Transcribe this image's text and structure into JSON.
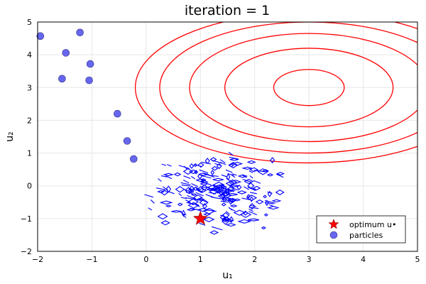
{
  "chart_data": {
    "type": "scatter",
    "title": "iteration = 1",
    "xlabel": "u₁",
    "ylabel": "u₂",
    "xlim": [
      -2,
      5
    ],
    "ylim": [
      -2,
      5
    ],
    "xticks": [
      -2,
      -1,
      0,
      1,
      2,
      3,
      4,
      5
    ],
    "yticks": [
      -2,
      -1,
      0,
      1,
      2,
      3,
      4,
      5
    ],
    "grid": true,
    "legend_position": "bottom-right",
    "colors": {
      "contour": "#ff0000",
      "particles": "#6666ee",
      "particle_edge": "#3a3a88",
      "optimum": "#ff0000",
      "noise_contour": "#0000ff"
    },
    "target_contours": {
      "center": [
        3,
        3
      ],
      "radii_x": [
        0.65,
        1.55,
        2.2,
        2.75,
        3.2
      ],
      "radii_y": [
        0.55,
        1.2,
        1.65,
        2.0,
        2.3
      ]
    },
    "noise_cloud": {
      "center": [
        1.3,
        -0.2
      ],
      "spread_x": 0.55,
      "spread_y": 0.5
    },
    "series": [
      {
        "name": "particles",
        "x": [
          -1.95,
          -1.22,
          -1.48,
          -1.03,
          -1.55,
          -1.05,
          -0.53,
          -0.35,
          -0.23
        ],
        "y": [
          4.57,
          4.68,
          4.06,
          3.72,
          3.27,
          3.22,
          2.2,
          1.37,
          0.82
        ]
      },
      {
        "name": "optimum u•",
        "x": [
          1.0
        ],
        "y": [
          -1.0
        ]
      }
    ],
    "legend": [
      "optimum u•",
      "particles"
    ]
  }
}
